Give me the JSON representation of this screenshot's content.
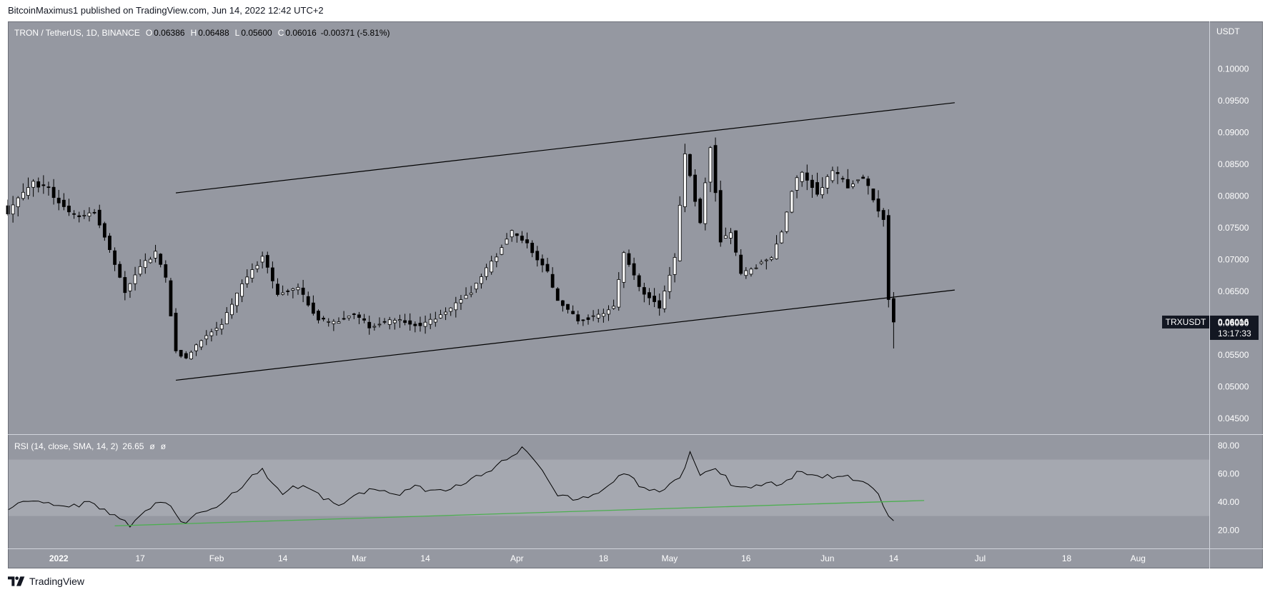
{
  "header": {
    "published_text": "BitcoinMaximus1 published on TradingView.com, Jun 14, 2022 12:42 UTC+2"
  },
  "footer": {
    "brand": "TradingView"
  },
  "colors": {
    "background": "#9598a1",
    "rsi_band": "#a5a8b0",
    "candle_up": "#ffffff",
    "candle_down": "#000000",
    "channel_line": "#000000",
    "rsi_line": "#000000",
    "rsi_trend": "#4caf50",
    "badge": "#131722"
  },
  "chart_data": {
    "type": "candlestick",
    "legend": {
      "symbol": "TRON / TetherUS, 1D, BINANCE",
      "o_label": "O",
      "o_value": "0.06386",
      "h_label": "H",
      "h_value": "0.06488",
      "l_label": "L",
      "l_value": "0.05600",
      "c_label": "C",
      "c_value": "0.06016",
      "change": "-0.00371 (-5.81%)"
    },
    "price_axis": {
      "unit": "USDT",
      "ticks": [
        "0.10000",
        "0.09500",
        "0.09000",
        "0.08500",
        "0.08000",
        "0.07500",
        "0.07000",
        "0.06500",
        "0.06000",
        "0.05500",
        "0.05000",
        "0.04500"
      ],
      "ylim": [
        0.0425,
        0.1075
      ]
    },
    "price_badge": {
      "symbol": "TRXUSDT",
      "price": "0.06016",
      "countdown": "13:17:33"
    },
    "x_axis": {
      "date_start": "2021-12-22",
      "date_end": "2022-08-15",
      "ticks": [
        {
          "date": "2022-01-01",
          "label": "2022"
        },
        {
          "date": "2022-01-17",
          "label": "17"
        },
        {
          "date": "2022-02-01",
          "label": "Feb"
        },
        {
          "date": "2022-02-14",
          "label": "14"
        },
        {
          "date": "2022-03-01",
          "label": "Mar"
        },
        {
          "date": "2022-03-14",
          "label": "14"
        },
        {
          "date": "2022-04-01",
          "label": "Apr"
        },
        {
          "date": "2022-04-18",
          "label": "18"
        },
        {
          "date": "2022-05-01",
          "label": "May"
        },
        {
          "date": "2022-05-16",
          "label": "16"
        },
        {
          "date": "2022-06-01",
          "label": "Jun"
        },
        {
          "date": "2022-06-14",
          "label": "14"
        },
        {
          "date": "2022-07-01",
          "label": "Jul"
        },
        {
          "date": "2022-07-18",
          "label": "18"
        },
        {
          "date": "2022-08-01",
          "label": "Aug"
        }
      ]
    },
    "close_anchors": [
      [
        "2021-12-22",
        0.0775
      ],
      [
        "2021-12-25",
        0.0805
      ],
      [
        "2021-12-27",
        0.082
      ],
      [
        "2021-12-30",
        0.081
      ],
      [
        "2022-01-02",
        0.078
      ],
      [
        "2022-01-05",
        0.0765
      ],
      [
        "2022-01-08",
        0.0775
      ],
      [
        "2022-01-11",
        0.0715
      ],
      [
        "2022-01-14",
        0.065
      ],
      [
        "2022-01-17",
        0.069
      ],
      [
        "2022-01-20",
        0.071
      ],
      [
        "2022-01-22",
        0.067
      ],
      [
        "2022-01-24",
        0.0555
      ],
      [
        "2022-01-26",
        0.0545
      ],
      [
        "2022-01-29",
        0.0575
      ],
      [
        "2022-02-02",
        0.06
      ],
      [
        "2022-02-06",
        0.066
      ],
      [
        "2022-02-10",
        0.0705
      ],
      [
        "2022-02-13",
        0.0645
      ],
      [
        "2022-02-17",
        0.0655
      ],
      [
        "2022-02-21",
        0.0605
      ],
      [
        "2022-02-24",
        0.06
      ],
      [
        "2022-02-28",
        0.0615
      ],
      [
        "2022-03-03",
        0.0595
      ],
      [
        "2022-03-08",
        0.0605
      ],
      [
        "2022-03-13",
        0.0595
      ],
      [
        "2022-03-18",
        0.0615
      ],
      [
        "2022-03-23",
        0.065
      ],
      [
        "2022-03-27",
        0.0695
      ],
      [
        "2022-03-31",
        0.0745
      ],
      [
        "2022-04-03",
        0.0725
      ],
      [
        "2022-04-07",
        0.068
      ],
      [
        "2022-04-09",
        0.0635
      ],
      [
        "2022-04-13",
        0.0605
      ],
      [
        "2022-04-16",
        0.061
      ],
      [
        "2022-04-20",
        0.0625
      ],
      [
        "2022-04-22",
        0.071
      ],
      [
        "2022-04-25",
        0.0655
      ],
      [
        "2022-04-29",
        0.0625
      ],
      [
        "2022-05-02",
        0.07
      ],
      [
        "2022-05-04",
        0.0865
      ],
      [
        "2022-05-07",
        0.0755
      ],
      [
        "2022-05-09",
        0.088
      ],
      [
        "2022-05-11",
        0.073
      ],
      [
        "2022-05-13",
        0.0745
      ],
      [
        "2022-05-15",
        0.0675
      ],
      [
        "2022-05-18",
        0.069
      ],
      [
        "2022-05-21",
        0.0705
      ],
      [
        "2022-05-23",
        0.0745
      ],
      [
        "2022-05-25",
        0.081
      ],
      [
        "2022-05-27",
        0.084
      ],
      [
        "2022-05-30",
        0.0805
      ],
      [
        "2022-06-02",
        0.084
      ],
      [
        "2022-06-05",
        0.0815
      ],
      [
        "2022-06-08",
        0.083
      ],
      [
        "2022-06-10",
        0.0795
      ],
      [
        "2022-06-12",
        0.0765
      ],
      [
        "2022-06-13",
        0.06386
      ],
      [
        "2022-06-14",
        0.06016
      ]
    ],
    "channel_lines": [
      {
        "name": "upper-channel",
        "from": [
          "2022-01-24",
          0.0805
        ],
        "to": [
          "2022-06-26",
          0.0947
        ]
      },
      {
        "name": "lower-channel",
        "from": [
          "2022-01-24",
          0.051
        ],
        "to": [
          "2022-06-26",
          0.0652
        ]
      }
    ],
    "rsi": {
      "label": "RSI (14, close, SMA, 14, 2)",
      "value": "26.65",
      "extra1": "ø",
      "extra2": "ø",
      "ticks": [
        "80.00",
        "60.00",
        "40.00",
        "20.00"
      ],
      "ylim": [
        7,
        87
      ],
      "band": [
        30,
        70
      ],
      "anchors": [
        [
          "2021-12-22",
          33
        ],
        [
          "2021-12-25",
          41
        ],
        [
          "2021-12-29",
          40
        ],
        [
          "2022-01-03",
          37
        ],
        [
          "2022-01-07",
          39
        ],
        [
          "2022-01-12",
          31
        ],
        [
          "2022-01-15",
          24
        ],
        [
          "2022-01-18",
          35
        ],
        [
          "2022-01-21",
          40
        ],
        [
          "2022-01-23",
          36
        ],
        [
          "2022-01-25",
          25
        ],
        [
          "2022-01-29",
          32
        ],
        [
          "2022-02-02",
          38
        ],
        [
          "2022-02-07",
          55
        ],
        [
          "2022-02-10",
          62
        ],
        [
          "2022-02-14",
          46
        ],
        [
          "2022-02-18",
          53
        ],
        [
          "2022-02-22",
          42
        ],
        [
          "2022-02-25",
          38
        ],
        [
          "2022-03-03",
          48
        ],
        [
          "2022-03-08",
          45
        ],
        [
          "2022-03-12",
          50
        ],
        [
          "2022-03-18",
          48
        ],
        [
          "2022-03-22",
          55
        ],
        [
          "2022-03-27",
          62
        ],
        [
          "2022-03-31",
          74
        ],
        [
          "2022-04-02",
          78
        ],
        [
          "2022-04-04",
          73
        ],
        [
          "2022-04-09",
          44
        ],
        [
          "2022-04-13",
          42
        ],
        [
          "2022-04-18",
          47
        ],
        [
          "2022-04-22",
          60
        ],
        [
          "2022-04-26",
          50
        ],
        [
          "2022-04-30",
          48
        ],
        [
          "2022-05-03",
          57
        ],
        [
          "2022-05-05",
          75
        ],
        [
          "2022-05-07",
          60
        ],
        [
          "2022-05-10",
          65
        ],
        [
          "2022-05-13",
          53
        ],
        [
          "2022-05-18",
          51
        ],
        [
          "2022-05-23",
          53
        ],
        [
          "2022-05-27",
          62
        ],
        [
          "2022-06-01",
          58
        ],
        [
          "2022-06-05",
          57
        ],
        [
          "2022-06-09",
          54
        ],
        [
          "2022-06-11",
          45
        ],
        [
          "2022-06-13",
          30
        ],
        [
          "2022-06-14",
          26.65
        ]
      ],
      "trendline": {
        "from": [
          "2022-01-12",
          23
        ],
        "to": [
          "2022-06-20",
          41
        ]
      }
    }
  }
}
